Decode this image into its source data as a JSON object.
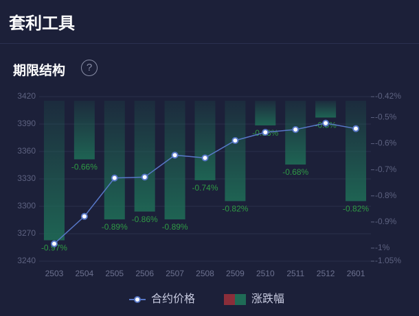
{
  "header": {
    "title": "套利工具"
  },
  "section": {
    "title": "期限结构",
    "help": "?"
  },
  "chart_data": {
    "type": "combo",
    "categories": [
      "2503",
      "2504",
      "2505",
      "2506",
      "2507",
      "2508",
      "2509",
      "2510",
      "2511",
      "2512",
      "2601"
    ],
    "ylim": [
      3240,
      3420
    ],
    "yticks": [
      3240,
      3270,
      3300,
      3330,
      3360,
      3390,
      3420
    ],
    "y2lim": [
      -0.42,
      -1.05
    ],
    "y2ticks": [
      {
        "value": -0.42,
        "label": "-0.42%"
      },
      {
        "value": -0.5,
        "label": "-0.5%"
      },
      {
        "value": -0.6,
        "label": "-0.6%"
      },
      {
        "value": -0.7,
        "label": "-0.7%"
      },
      {
        "value": -0.8,
        "label": "-0.8%"
      },
      {
        "value": -0.9,
        "label": "-0.9%"
      },
      {
        "value": -1,
        "label": "-1%"
      },
      {
        "value": -1.05,
        "label": "-1.05%"
      }
    ],
    "grid": true,
    "series": [
      {
        "name": "涨跌幅",
        "type": "bar",
        "axis": "y2",
        "color": "#1f6b56",
        "up_color": "#8b2e3a",
        "values": [
          -0.97,
          -0.66,
          -0.89,
          -0.86,
          -0.89,
          -0.74,
          -0.82,
          -0.53,
          -0.68,
          -0.5,
          -0.82
        ],
        "value_labels": [
          "-0.97%",
          "-0.66%",
          "-0.89%",
          "-0.86%",
          "-0.89%",
          "-0.74%",
          "-0.82%",
          "-0.53%",
          "-0.68%",
          "-0.5%",
          "-0.82%"
        ]
      },
      {
        "name": "合约价格",
        "type": "line",
        "color": "#5878c8",
        "values": [
          3259,
          3289,
          3331,
          3332,
          3356,
          3353,
          3372,
          3381,
          3384,
          3391,
          3385
        ]
      }
    ]
  }
}
